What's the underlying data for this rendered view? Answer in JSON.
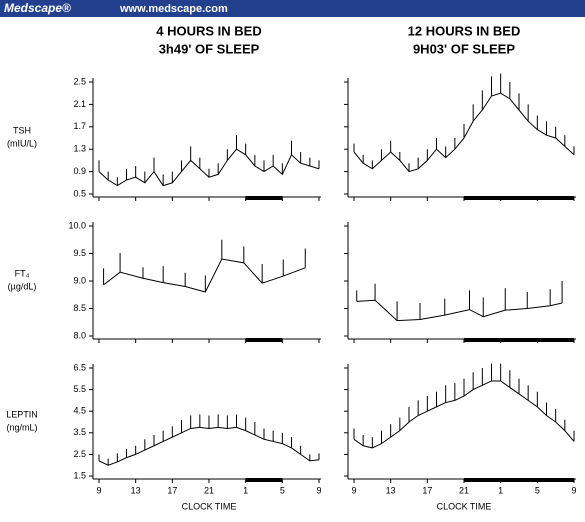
{
  "header": {
    "brand": "Medscape®",
    "url": "www.medscape.com"
  },
  "chart_data": [
    {
      "type": "line",
      "title": "4 HOURS IN BED",
      "subtitle": "3h49' OF SLEEP",
      "ylabel": [
        "TSH",
        "(mIU/L)"
      ],
      "x": [
        9,
        10,
        11,
        12,
        13,
        14,
        15,
        16,
        17,
        18,
        19,
        20,
        21,
        22,
        23,
        24,
        25,
        26,
        27,
        28,
        29,
        30,
        31,
        32,
        33
      ],
      "series": [
        {
          "color": "#000000",
          "values": [
            0.9,
            0.75,
            0.65,
            0.75,
            0.8,
            0.7,
            0.9,
            0.65,
            0.7,
            0.9,
            1.1,
            0.95,
            0.8,
            0.85,
            1.1,
            1.3,
            1.2,
            1.0,
            0.9,
            1.0,
            0.85,
            1.2,
            1.05,
            1.0,
            0.95
          ],
          "errors": [
            0.2,
            0.15,
            0.15,
            0.2,
            0.2,
            0.2,
            0.25,
            0.2,
            0.2,
            0.2,
            0.25,
            0.2,
            0.15,
            0.2,
            0.2,
            0.25,
            0.2,
            0.2,
            0.2,
            0.2,
            0.2,
            0.25,
            0.2,
            0.15,
            0.15
          ]
        }
      ],
      "xlim": [
        9,
        33
      ],
      "xticks": [
        9,
        13,
        17,
        21,
        {
          "value": 25,
          "label": "1"
        },
        {
          "value": 29,
          "label": "5"
        },
        {
          "value": 33,
          "label": "9"
        }
      ],
      "ylim": [
        0.5,
        2.5
      ],
      "yticks": [
        0.5,
        0.9,
        1.3,
        1.7,
        2.1,
        2.5
      ],
      "xtick_labels": false,
      "ytick_labels": true,
      "sleep": [
        25,
        29
      ]
    },
    {
      "type": "line",
      "title": "12 HOURS IN BED",
      "subtitle": "9H03' OF SLEEP",
      "x": [
        9,
        10,
        11,
        12,
        13,
        14,
        15,
        16,
        17,
        18,
        19,
        20,
        21,
        22,
        23,
        24,
        25,
        26,
        27,
        28,
        29,
        30,
        31,
        32,
        33
      ],
      "series": [
        {
          "color": "#000000",
          "values": [
            1.25,
            1.05,
            0.95,
            1.1,
            1.25,
            1.1,
            0.9,
            0.95,
            1.1,
            1.3,
            1.15,
            1.3,
            1.5,
            1.8,
            2.0,
            2.25,
            2.3,
            2.2,
            2.0,
            1.8,
            1.65,
            1.55,
            1.5,
            1.35,
            1.2
          ],
          "errors": [
            0.15,
            0.15,
            0.15,
            0.2,
            0.2,
            0.15,
            0.15,
            0.2,
            0.2,
            0.2,
            0.2,
            0.2,
            0.25,
            0.3,
            0.35,
            0.35,
            0.35,
            0.3,
            0.3,
            0.3,
            0.25,
            0.25,
            0.2,
            0.2,
            0.15
          ]
        }
      ],
      "xlim": [
        9,
        33
      ],
      "xticks": [
        9,
        13,
        17,
        21,
        {
          "value": 25,
          "label": "1"
        },
        {
          "value": 29,
          "label": "5"
        },
        {
          "value": 33,
          "label": "9"
        }
      ],
      "ylim": [
        0.5,
        2.5
      ],
      "yticks": [
        0.5,
        0.9,
        1.3,
        1.7,
        2.1,
        2.5
      ],
      "xtick_labels": false,
      "ytick_labels": false,
      "sleep": [
        21,
        33
      ]
    },
    {
      "type": "line",
      "ylabel": [
        "FT₄",
        "(µg/dL)"
      ],
      "x": [
        9.5,
        11.3,
        13.8,
        16,
        18.4,
        20.6,
        22.4,
        24.8,
        26.8,
        29.1,
        31.5
      ],
      "series": [
        {
          "color": "#000000",
          "values": [
            8.93,
            9.16,
            9.05,
            8.97,
            8.9,
            8.8,
            9.4,
            9.33,
            8.96,
            9.09,
            9.24
          ],
          "errors": [
            0.3,
            0.35,
            0.2,
            0.3,
            0.25,
            0.3,
            0.35,
            0.3,
            0.35,
            0.3,
            0.35
          ]
        }
      ],
      "xlim": [
        9,
        33
      ],
      "xticks": [
        9,
        13,
        17,
        21,
        {
          "value": 25,
          "label": "1"
        },
        {
          "value": 29,
          "label": "5"
        },
        {
          "value": 33,
          "label": "9"
        }
      ],
      "ylim": [
        8,
        10
      ],
      "yticks": [
        {
          "value": 8,
          "label": "8.0"
        },
        8.5,
        {
          "value": 9,
          "label": "9.0"
        },
        9.5,
        {
          "value": 10,
          "label": "10.0"
        }
      ],
      "xtick_labels": false,
      "ytick_labels": true,
      "sleep": [
        25,
        29
      ]
    },
    {
      "type": "line",
      "x": [
        9.3,
        11.3,
        13.7,
        16.2,
        18.9,
        21.6,
        23.1,
        25.5,
        27.9,
        30.4,
        31.7
      ],
      "series": [
        {
          "color": "#000000",
          "values": [
            8.63,
            8.65,
            8.28,
            8.3,
            8.38,
            8.48,
            8.35,
            8.47,
            8.5,
            8.55,
            8.6
          ],
          "errors": [
            0.2,
            0.3,
            0.35,
            0.3,
            0.3,
            0.35,
            0.35,
            0.4,
            0.3,
            0.3,
            0.4
          ]
        }
      ],
      "xlim": [
        9,
        33
      ],
      "xticks": [
        9,
        13,
        17,
        21,
        {
          "value": 25,
          "label": "1"
        },
        {
          "value": 29,
          "label": "5"
        },
        {
          "value": 33,
          "label": "9"
        }
      ],
      "ylim": [
        8,
        10
      ],
      "yticks": [
        {
          "value": 8,
          "label": "8.0"
        },
        8.5,
        {
          "value": 9,
          "label": "9.0"
        },
        9.5,
        {
          "value": 10,
          "label": "10.0"
        }
      ],
      "xtick_labels": false,
      "ytick_labels": false,
      "sleep": [
        21,
        33
      ]
    },
    {
      "type": "line",
      "ylabel": [
        "LEPTIN",
        "(ng/mL)"
      ],
      "xlabel": "CLOCK TIME",
      "x": [
        9,
        10,
        11,
        12,
        13,
        14,
        15,
        16,
        17,
        18,
        19,
        20,
        21,
        22,
        23,
        24,
        25,
        26,
        27,
        28,
        29,
        30,
        31,
        32,
        33
      ],
      "series": [
        {
          "color": "#000000",
          "values": [
            2.2,
            2.0,
            2.15,
            2.35,
            2.5,
            2.7,
            2.9,
            3.1,
            3.3,
            3.5,
            3.7,
            3.75,
            3.7,
            3.75,
            3.7,
            3.75,
            3.6,
            3.4,
            3.2,
            3.1,
            3.0,
            2.8,
            2.5,
            2.2,
            2.25
          ],
          "errors": [
            0.3,
            0.3,
            0.4,
            0.4,
            0.4,
            0.5,
            0.5,
            0.5,
            0.5,
            0.6,
            0.6,
            0.6,
            0.6,
            0.6,
            0.6,
            0.6,
            0.6,
            0.6,
            0.5,
            0.5,
            0.5,
            0.5,
            0.4,
            0.3,
            0.3
          ]
        }
      ],
      "xlim": [
        9,
        33
      ],
      "xticks": [
        9,
        13,
        17,
        21,
        {
          "value": 25,
          "label": "1"
        },
        {
          "value": 29,
          "label": "5"
        },
        {
          "value": 33,
          "label": "9"
        }
      ],
      "ylim": [
        1.5,
        6.5
      ],
      "yticks": [
        1.5,
        2.5,
        3.5,
        4.5,
        5.5,
        6.5
      ],
      "xtick_labels": true,
      "ytick_labels": true,
      "sleep": [
        25,
        29
      ]
    },
    {
      "type": "line",
      "xlabel": "CLOCK TIME",
      "x": [
        9,
        10,
        11,
        12,
        13,
        14,
        15,
        16,
        17,
        18,
        19,
        20,
        21,
        22,
        23,
        24,
        25,
        26,
        27,
        28,
        29,
        30,
        31,
        32,
        33
      ],
      "series": [
        {
          "color": "#000000",
          "values": [
            3.2,
            2.9,
            2.8,
            3.0,
            3.3,
            3.6,
            4.0,
            4.3,
            4.5,
            4.7,
            4.9,
            5.0,
            5.2,
            5.5,
            5.7,
            5.9,
            5.9,
            5.6,
            5.3,
            5.0,
            4.7,
            4.3,
            4.0,
            3.6,
            3.1
          ],
          "errors": [
            0.5,
            0.5,
            0.5,
            0.6,
            0.6,
            0.6,
            0.7,
            0.7,
            0.7,
            0.7,
            0.8,
            0.8,
            0.8,
            0.8,
            0.8,
            0.8,
            0.8,
            0.8,
            0.7,
            0.7,
            0.7,
            0.6,
            0.6,
            0.5,
            0.5
          ]
        }
      ],
      "xlim": [
        9,
        33
      ],
      "xticks": [
        9,
        13,
        17,
        21,
        {
          "value": 25,
          "label": "1"
        },
        {
          "value": 29,
          "label": "5"
        },
        {
          "value": 33,
          "label": "9"
        }
      ],
      "ylim": [
        1.5,
        6.5
      ],
      "yticks": [
        1.5,
        2.5,
        3.5,
        4.5,
        5.5,
        6.5
      ],
      "xtick_labels": true,
      "ytick_labels": false,
      "sleep": [
        21,
        33
      ]
    }
  ]
}
